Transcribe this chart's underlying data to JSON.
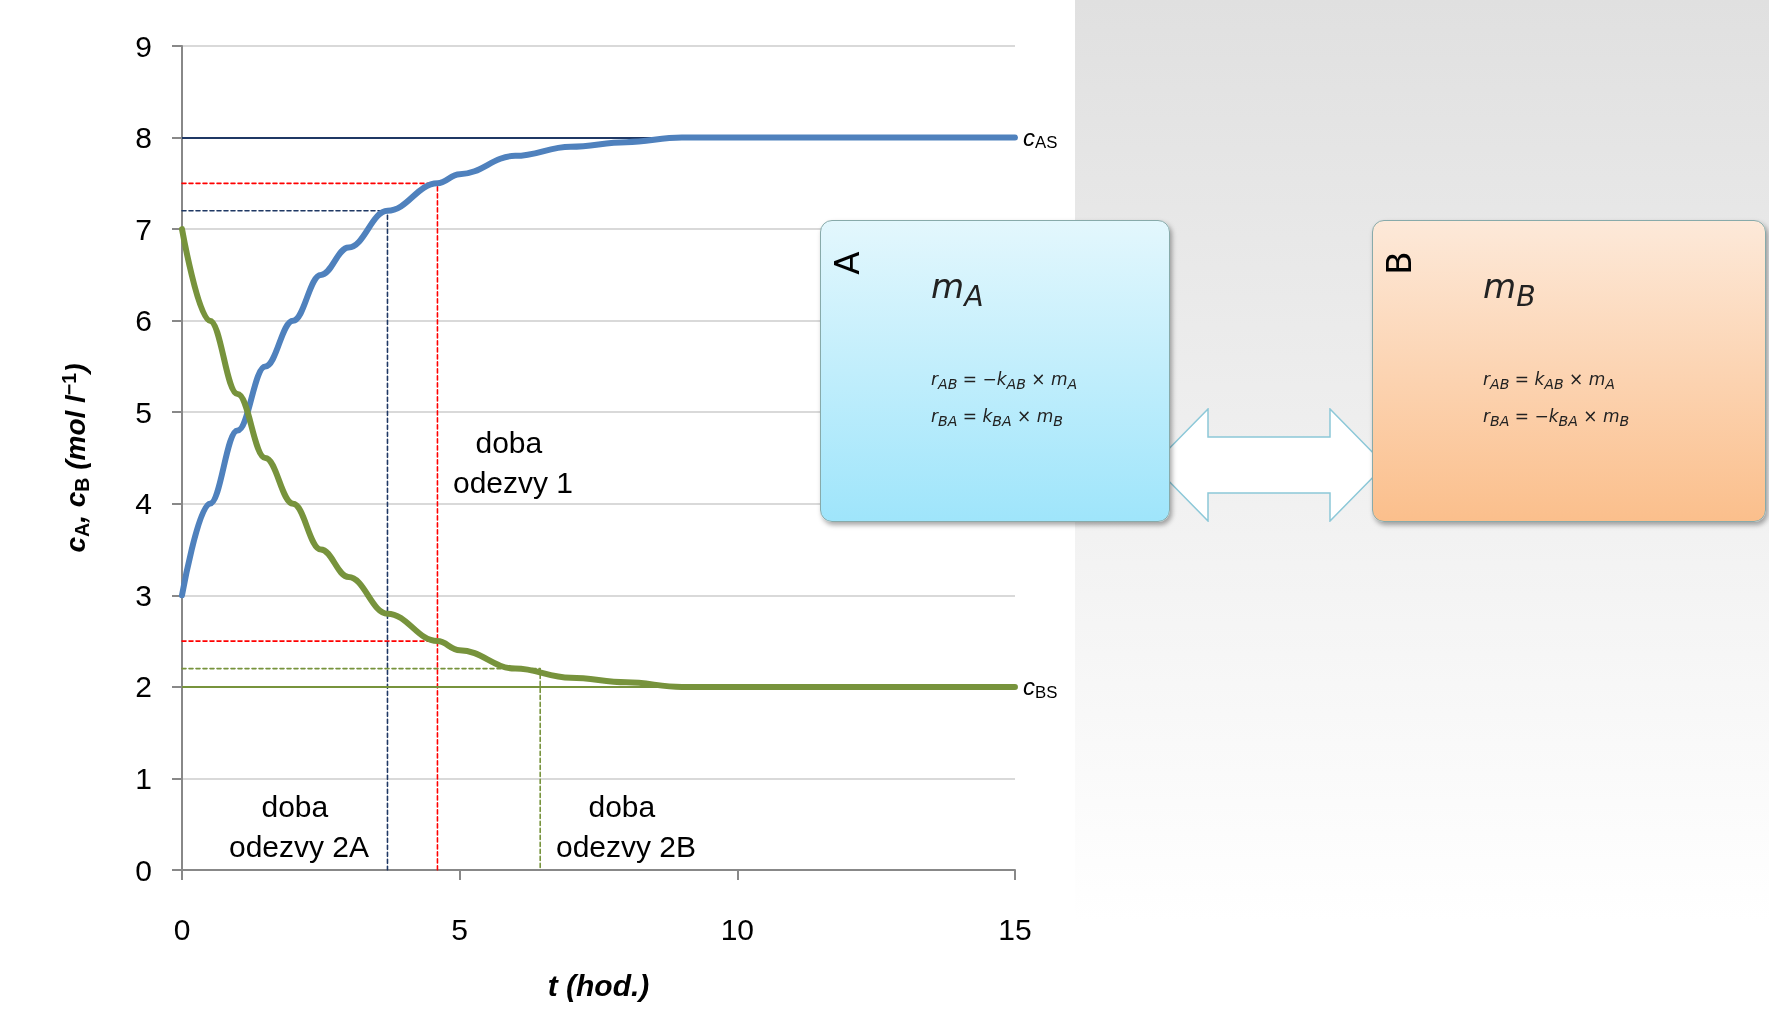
{
  "chart_data": {
    "type": "line",
    "xlabel": "t (hod.)",
    "ylabel": "c$_{A}$, c$_{B}$ (mol l$^{−1}$)",
    "xlim": [
      0,
      15
    ],
    "xticks": [
      0,
      5,
      10,
      15
    ],
    "ylim": [
      0,
      9
    ],
    "yticks": [
      0,
      1,
      2,
      3,
      4,
      5,
      6,
      7,
      8,
      9
    ],
    "grid": "y",
    "marker": "none",
    "line_style": "solid",
    "series": [
      {
        "color": "#4f81bd",
        "x": [
          0,
          0.5,
          1,
          1.5,
          2,
          2.5,
          3,
          3.7,
          4.6,
          5,
          6,
          7,
          8,
          9,
          10,
          12,
          15
        ],
        "values": [
          3,
          4.0,
          4.8,
          5.5,
          6.0,
          6.5,
          6.8,
          7.2,
          7.5,
          7.6,
          7.8,
          7.9,
          7.95,
          8,
          8,
          8,
          8
        ]
      },
      {
        "color": "#77933c",
        "x": [
          0,
          0.5,
          1,
          1.5,
          2,
          2.5,
          3,
          3.7,
          4.6,
          5,
          6,
          7,
          8,
          9,
          10,
          12,
          15
        ],
        "values": [
          7,
          6.0,
          5.2,
          4.5,
          4.0,
          3.5,
          3.2,
          2.8,
          2.5,
          2.4,
          2.2,
          2.1,
          2.05,
          2,
          2,
          2,
          2
        ]
      },
      {
        "color": "#ff0000",
        "line_style": "dashed",
        "x": [
          0,
          4.6,
          4.6
        ],
        "values": [
          7.5,
          7.5,
          0
        ]
      },
      {
        "color": "#ff0000",
        "line_style": "dashed",
        "x": [
          0,
          4.6
        ],
        "values": [
          2.5,
          2.5
        ]
      },
      {
        "color": "#1f3864",
        "line_style": "dashed",
        "x": [
          0,
          3.7,
          3.7
        ],
        "values": [
          7.2,
          7.2,
          0
        ]
      },
      {
        "color": "#77933c",
        "line_style": "dashed",
        "x": [
          0,
          6.45,
          6.45
        ],
        "values": [
          2.2,
          2.2,
          0
        ]
      }
    ],
    "ref_lines": [
      {
        "axis": "y",
        "value": 8,
        "label": "c$_{AS}$",
        "color": "#1f3864"
      },
      {
        "axis": "y",
        "value": 2,
        "label": "c$_{BS}$",
        "color": "#77933c"
      }
    ],
    "annotations": [
      "doba odezvy 1",
      "doba odezvy 2A",
      "doba odezvy 2B",
      "A",
      "m$_{A}$",
      "r$_{AB}$ = −k$_{AB}$ × m$_{A}$",
      "r$_{BA}$ = k$_{BA}$ × m$_{B}$",
      "B",
      "m$_{B}$",
      "r$_{AB}$ = k$_{AB}$ × m$_{A}$",
      "r$_{BA}$ = −k$_{BA}$ × m$_{B}$"
    ]
  }
}
